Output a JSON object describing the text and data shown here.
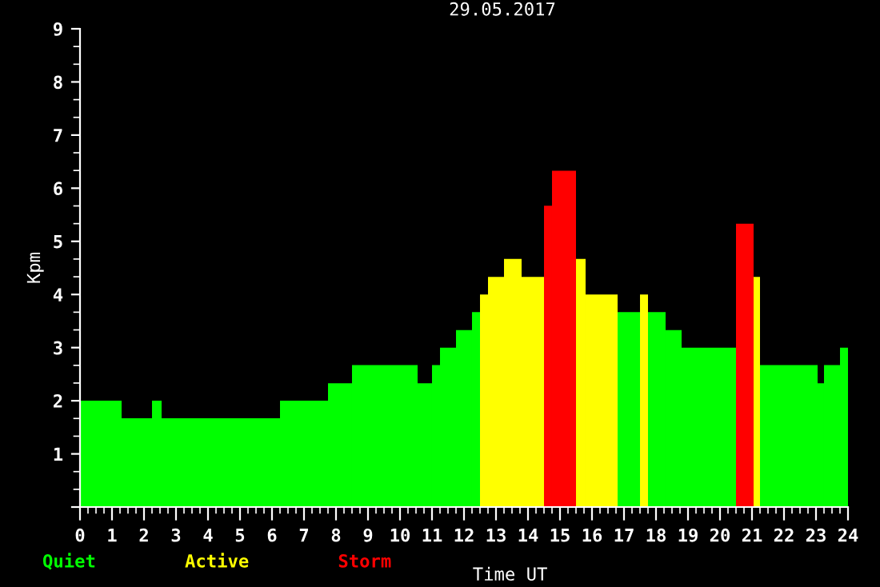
{
  "chart_data": {
    "type": "histogram",
    "title": "29.05.2017",
    "xlabel": "Time UT",
    "ylabel": "Kpm",
    "bins": [
      0,
      1.3,
      2.25,
      2.55,
      6.25,
      7.75,
      8.5,
      10.55,
      11.0,
      11.25,
      11.75,
      12.25,
      12.5,
      12.75,
      13.25,
      13.8,
      14.5,
      14.75,
      15.5,
      15.8,
      16.8,
      17.5,
      17.75,
      18.3,
      18.8,
      20.5,
      21.05,
      21.25,
      23.05,
      23.25,
      23.75,
      24
    ],
    "series": [
      {
        "name": "Quiet",
        "color": "#00ff00",
        "values": [
          2.0,
          1.67,
          2.0,
          1.67,
          2.0,
          2.33,
          2.67,
          2.33,
          2.67,
          3.0,
          3.33,
          3.67,
          null,
          null,
          null,
          null,
          null,
          null,
          null,
          null,
          3.67,
          null,
          3.67,
          3.33,
          3.0,
          null,
          null,
          2.67,
          2.33,
          2.67,
          3.0
        ]
      },
      {
        "name": "Active",
        "color": "#ffff00",
        "values": [
          null,
          null,
          null,
          null,
          null,
          null,
          null,
          null,
          null,
          null,
          null,
          null,
          4.0,
          4.33,
          4.67,
          4.33,
          null,
          null,
          4.67,
          4.0,
          null,
          4.0,
          null,
          null,
          null,
          null,
          4.33,
          null,
          null,
          null,
          null
        ]
      },
      {
        "name": "Storm",
        "color": "#ff0000",
        "values": [
          null,
          null,
          null,
          null,
          null,
          null,
          null,
          null,
          null,
          null,
          null,
          null,
          null,
          null,
          null,
          null,
          5.67,
          6.33,
          null,
          null,
          null,
          null,
          null,
          null,
          null,
          5.33,
          null,
          null,
          null,
          null,
          null
        ]
      }
    ],
    "xlim": [
      0,
      24
    ],
    "ylim": [
      0,
      9
    ],
    "xticks": [
      0,
      1,
      2,
      3,
      4,
      5,
      6,
      7,
      8,
      9,
      10,
      11,
      12,
      13,
      14,
      15,
      16,
      17,
      18,
      19,
      20,
      21,
      22,
      23,
      24
    ],
    "yticks": [
      {
        "value": 0,
        "label": null
      },
      1,
      2,
      3,
      4,
      5,
      6,
      7,
      8,
      9
    ],
    "grid": false,
    "legend": "bottom left"
  }
}
